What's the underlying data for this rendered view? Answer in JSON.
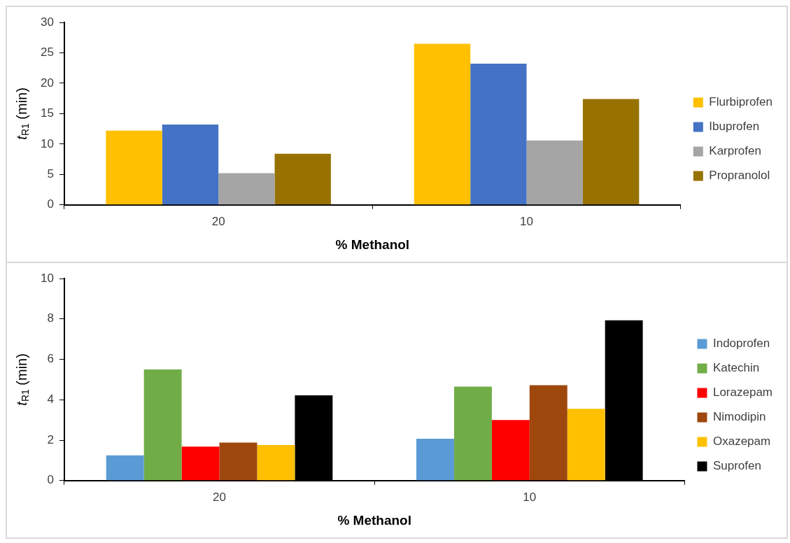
{
  "chart_data": [
    {
      "type": "bar",
      "xlabel": "% Methanol",
      "ylabel": "t$_{R1}$ (min)",
      "categories": [
        "20",
        "10"
      ],
      "series": [
        {
          "name": "Flurbiprofen",
          "color": "#ffc000",
          "values": [
            12.2,
            26.5
          ]
        },
        {
          "name": "Ibuprofen",
          "color": "#4472c4",
          "values": [
            13.2,
            23.2
          ]
        },
        {
          "name": "Karprofen",
          "color": "#a5a5a5",
          "values": [
            5.2,
            10.6
          ]
        },
        {
          "name": "Propranolol",
          "color": "#977200",
          "values": [
            8.4,
            17.4
          ]
        }
      ],
      "ylim": [
        0,
        30
      ],
      "yticks": [
        0,
        5,
        10,
        15,
        20,
        25,
        30
      ],
      "grid": false,
      "legend": "right"
    },
    {
      "type": "bar",
      "xlabel": "% Methanol",
      "ylabel": "t$_{R1}$ (min)",
      "categories": [
        "20",
        "10"
      ],
      "series": [
        {
          "name": "Indoprofen",
          "color": "#5b9bd5",
          "values": [
            1.25,
            2.07
          ]
        },
        {
          "name": "Katechin",
          "color": "#70ad47",
          "values": [
            5.5,
            4.65
          ]
        },
        {
          "name": "Lorazepam",
          "color": "#ff0000",
          "values": [
            1.68,
            3.0
          ]
        },
        {
          "name": "Nimodipin",
          "color": "#9e480e",
          "values": [
            1.88,
            4.72
          ]
        },
        {
          "name": "Oxazepam",
          "color": "#ffc000",
          "values": [
            1.76,
            3.55
          ]
        },
        {
          "name": "Suprofen",
          "color": "#000000",
          "values": [
            4.22,
            7.93
          ]
        }
      ],
      "ylim": [
        0,
        10
      ],
      "yticks": [
        0,
        2,
        4,
        6,
        8,
        10
      ],
      "grid": false,
      "legend": "right"
    }
  ]
}
